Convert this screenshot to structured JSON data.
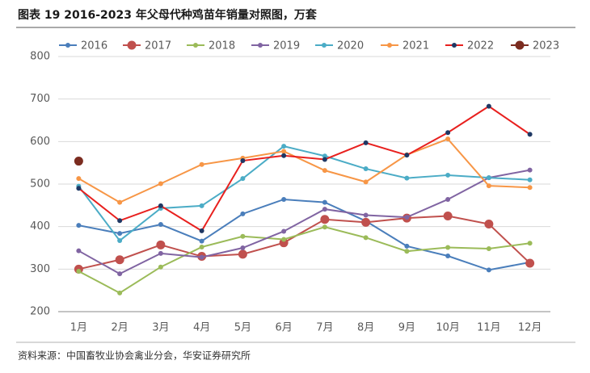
{
  "chart_data": {
    "type": "line",
    "title": "图表 19 2016-2023 年父母代种鸡苗年销量对照图，万套",
    "source": "资料来源：中国畜牧业协会禽业分会，华安证券研究所",
    "categories": [
      "1月",
      "2月",
      "3月",
      "4月",
      "5月",
      "6月",
      "7月",
      "8月",
      "9月",
      "10月",
      "11月",
      "12月"
    ],
    "ylim": [
      200,
      800
    ],
    "yticks": [
      200,
      300,
      400,
      500,
      600,
      700,
      800
    ],
    "grid": true,
    "legend": "top",
    "series": [
      {
        "name": "2016",
        "color": "#4a7ebb",
        "marker_color": "#4a7ebb",
        "values": [
          403,
          384,
          405,
          366,
          430,
          464,
          457,
          413,
          354,
          331,
          298,
          316
        ]
      },
      {
        "name": "2017",
        "color": "#c0504d",
        "marker_color": "#c0504d",
        "values": [
          300,
          322,
          357,
          330,
          335,
          362,
          417,
          410,
          420,
          425,
          406,
          314
        ]
      },
      {
        "name": "2018",
        "color": "#9bbb59",
        "marker_color": "#9bbb59",
        "values": [
          295,
          244,
          305,
          352,
          377,
          370,
          399,
          374,
          342,
          351,
          348,
          361
        ]
      },
      {
        "name": "2019",
        "color": "#8064a2",
        "marker_color": "#8064a2",
        "values": [
          343,
          289,
          337,
          328,
          350,
          389,
          441,
          427,
          422,
          464,
          515,
          533
        ]
      },
      {
        "name": "2020",
        "color": "#4bacc6",
        "marker_color": "#4bacc6",
        "values": [
          495,
          367,
          443,
          449,
          513,
          589,
          566,
          536,
          514,
          521,
          515,
          510
        ]
      },
      {
        "name": "2021",
        "color": "#f79646",
        "marker_color": "#f79646",
        "values": [
          513,
          457,
          501,
          546,
          561,
          577,
          532,
          505,
          569,
          606,
          496,
          492
        ]
      },
      {
        "name": "2022",
        "color": "#e8201e",
        "marker_color": "#1f3864",
        "values": [
          490,
          414,
          449,
          390,
          555,
          567,
          558,
          597,
          568,
          621,
          683,
          617
        ]
      },
      {
        "name": "2023",
        "color": "#7b2c20",
        "marker_color": "#7b2c20",
        "values": [
          554,
          null,
          null,
          null,
          null,
          null,
          null,
          null,
          null,
          null,
          null,
          null
        ]
      }
    ]
  }
}
